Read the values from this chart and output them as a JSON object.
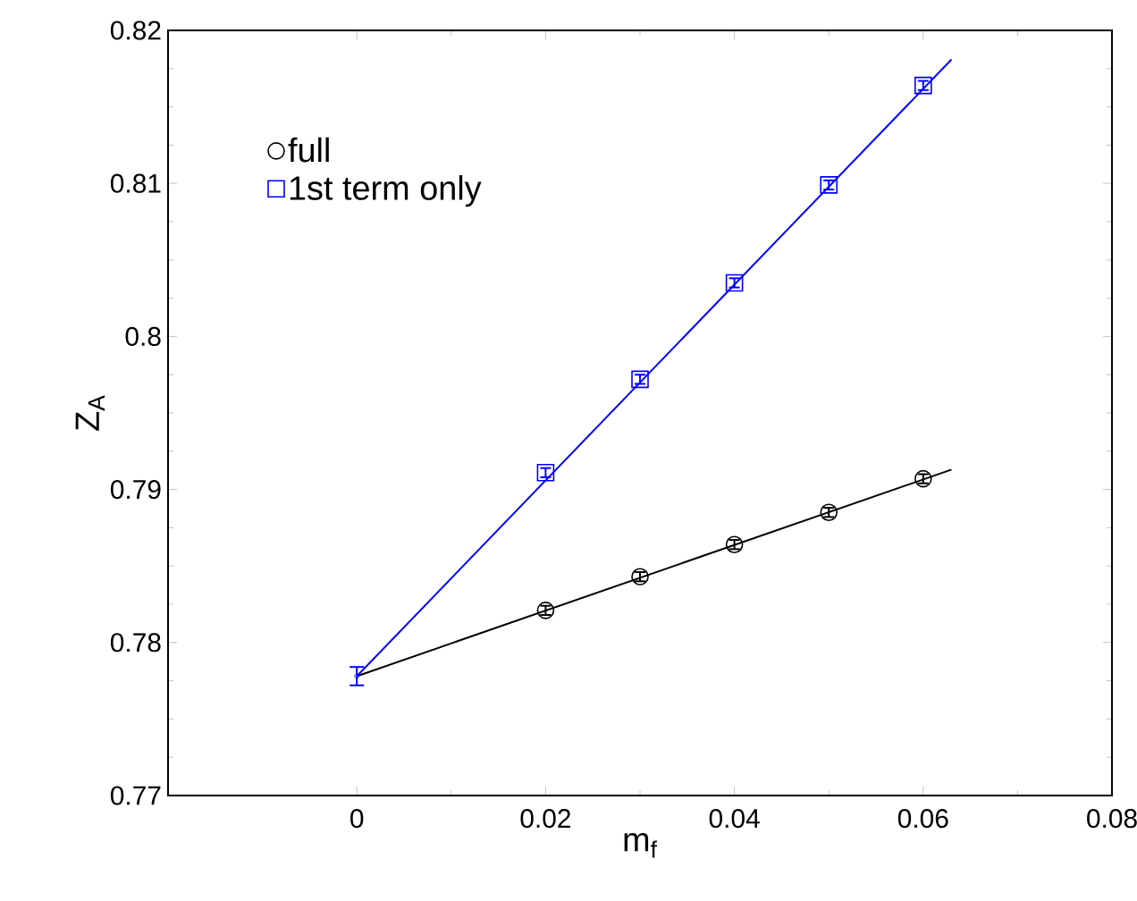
{
  "chart_data": {
    "type": "scatter",
    "xlabel": "m$_{f}$",
    "ylabel": "Z$_{A}$",
    "xlim": [
      -0.02,
      0.08
    ],
    "ylim": [
      0.77,
      0.82
    ],
    "xticks": [
      0,
      0.02,
      0.04,
      0.06,
      0.08
    ],
    "yticks": [
      0.77,
      0.78,
      0.79,
      0.8,
      0.81,
      0.82
    ],
    "grid": false,
    "legend": "top left",
    "series": [
      {
        "name": "full",
        "color": "#000000",
        "marker": "circle",
        "x": [
          0.02,
          0.03,
          0.04,
          0.05,
          0.06
        ],
        "values": [
          0.7821,
          0.7843,
          0.7864,
          0.7885,
          0.7907
        ],
        "errors": [
          0.0003,
          0.0003,
          0.0003,
          0.0003,
          0.0003
        ]
      },
      {
        "name": "1st term only",
        "color": "#0000ff",
        "marker": "square",
        "x": [
          0.02,
          0.03,
          0.04,
          0.05,
          0.06
        ],
        "values": [
          0.7911,
          0.7972,
          0.8035,
          0.8099,
          0.8164
        ],
        "errors": [
          0.0003,
          0.0003,
          0.0003,
          0.0003,
          0.0003
        ]
      },
      {
        "color": "#0000ff",
        "marker": "circle",
        "x": [
          0
        ],
        "values": [
          0.7778
        ],
        "errors": [
          0.0006
        ]
      },
      {
        "type": "line",
        "color": "#000000",
        "line_style": "solid",
        "x": [
          0,
          0.063
        ],
        "values": [
          0.7778,
          0.7913
        ]
      },
      {
        "type": "line",
        "color": "#0000ff",
        "line_style": "solid",
        "x": [
          0,
          0.063
        ],
        "values": [
          0.7778,
          0.8181
        ]
      }
    ]
  }
}
